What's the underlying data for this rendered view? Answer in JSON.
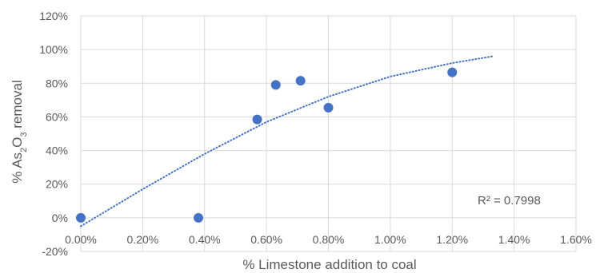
{
  "chart_data": {
    "type": "scatter",
    "xlabel": "% Limestone addition to coal",
    "ylabel_parts": [
      "% As",
      "2",
      "O",
      "3",
      " removal"
    ],
    "x_ticks": [
      "0.00%",
      "0.20%",
      "0.40%",
      "0.60%",
      "0.80%",
      "1.00%",
      "1.20%",
      "1.40%",
      "1.60%"
    ],
    "y_ticks": [
      "-20%",
      "0%",
      "20%",
      "40%",
      "60%",
      "80%",
      "100%",
      "120%"
    ],
    "xlim": [
      0,
      1.6
    ],
    "ylim": [
      -20,
      120
    ],
    "grid": true,
    "series": [
      {
        "x": [
          0.0,
          0.38,
          0.57,
          0.63,
          0.71,
          0.8,
          1.2
        ],
        "y": [
          0,
          0,
          58.5,
          79,
          81.5,
          65.5,
          86.5
        ]
      }
    ],
    "trendline": {
      "type": "polynomial",
      "x_range": [
        0.0,
        1.33
      ],
      "points": [
        [
          0.0,
          -5
        ],
        [
          0.2,
          17
        ],
        [
          0.4,
          38
        ],
        [
          0.6,
          57
        ],
        [
          0.8,
          72
        ],
        [
          1.0,
          84
        ],
        [
          1.2,
          92
        ],
        [
          1.33,
          96
        ]
      ]
    },
    "annotation": "R² = 0.7998",
    "marker_color": "#4472c4",
    "trend_color": "#4472c4"
  }
}
